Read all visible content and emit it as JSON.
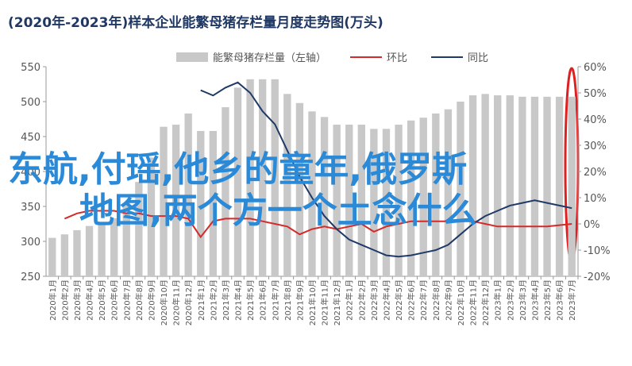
{
  "chart_data": {
    "type": "bar_line",
    "title": "(2020年-2023年)样本企业能繁母猪存栏量月度走势图(万头)",
    "annotations": [
      "东航,付瑶,他乡的童年,俄罗斯",
      "地图,两个方一个土念什么"
    ],
    "categories": [
      "2020年1月",
      "2020年2月",
      "2020年3月",
      "2020年4月",
      "2020年5月",
      "2020年6月",
      "2020年7月",
      "2020年8月",
      "2020年9月",
      "2020年10月",
      "2020年11月",
      "2020年12月",
      "2021年1月",
      "2021年2月",
      "2021年3月",
      "2021年4月",
      "2021年5月",
      "2021年6月",
      "2021年7月",
      "2021年8月",
      "2021年9月",
      "2021年10月",
      "2021年11月",
      "2021年12月",
      "2022年1月",
      "2022年2月",
      "2022年3月",
      "2022年4月",
      "2022年5月",
      "2022年6月",
      "2022年7月",
      "2022年8月",
      "2022年9月",
      "2022年10月",
      "2022年11月",
      "2022年12月",
      "2023年1月",
      "2023年2月",
      "2023年3月",
      "2023年4月",
      "2023年5月",
      "2023年6月",
      "2023年7月"
    ],
    "series": [
      {
        "name": "能繁母猪存栏量（左轴）",
        "color": "#c8c8c8",
        "kind": "bar",
        "values": [
          305,
          310,
          316,
          322,
          327,
          333,
          355,
          385,
          420,
          464,
          467,
          483,
          458,
          458,
          492,
          520,
          532,
          532,
          532,
          511,
          498,
          486,
          478,
          467,
          467,
          467,
          461,
          461,
          467,
          473,
          477,
          483,
          489,
          500,
          509,
          511,
          509,
          509,
          507,
          507,
          507,
          507,
          507
        ]
      },
      {
        "name": "环比",
        "color": "#d42a2a",
        "kind": "line",
        "axis": "y2",
        "values": [
          null,
          2,
          4,
          5,
          5,
          5,
          4,
          4,
          3,
          3,
          3,
          2,
          -5,
          1,
          2,
          2,
          2,
          1,
          0,
          -1,
          -4,
          -2,
          -1,
          -2,
          -1,
          0,
          -3,
          -1,
          0,
          1,
          1,
          1,
          1,
          1,
          1,
          0,
          -1,
          -1,
          -1,
          -1,
          -1,
          -0.5,
          0
        ]
      },
      {
        "name": "同比",
        "color": "#1f3a68",
        "kind": "line",
        "axis": "y2",
        "values": [
          null,
          null,
          null,
          null,
          null,
          null,
          null,
          null,
          null,
          null,
          null,
          null,
          51,
          49,
          52,
          54,
          50,
          43,
          38,
          28,
          18,
          10,
          3,
          -2,
          -6,
          -8,
          -10,
          -12,
          -12.5,
          -12,
          -11,
          -10,
          -8,
          -4,
          0,
          3,
          5,
          7,
          8,
          9,
          8,
          7,
          6
        ]
      }
    ],
    "ylim": [
      250,
      550
    ],
    "yticks": [
      250,
      300,
      350,
      400,
      450,
      500,
      550
    ],
    "y2lim": [
      -20,
      60
    ],
    "y2ticks": [
      {
        "value": -20,
        "label": "-20%"
      },
      {
        "value": -10,
        "label": "-10%"
      },
      {
        "value": 0,
        "label": "0%"
      },
      {
        "value": 10,
        "label": "10%"
      },
      {
        "value": 20,
        "label": "20%"
      },
      {
        "value": 30,
        "label": "30%"
      },
      {
        "value": 40,
        "label": "40%"
      },
      {
        "value": 50,
        "label": "50%"
      },
      {
        "value": 60,
        "label": "60%"
      }
    ],
    "grid": false
  }
}
